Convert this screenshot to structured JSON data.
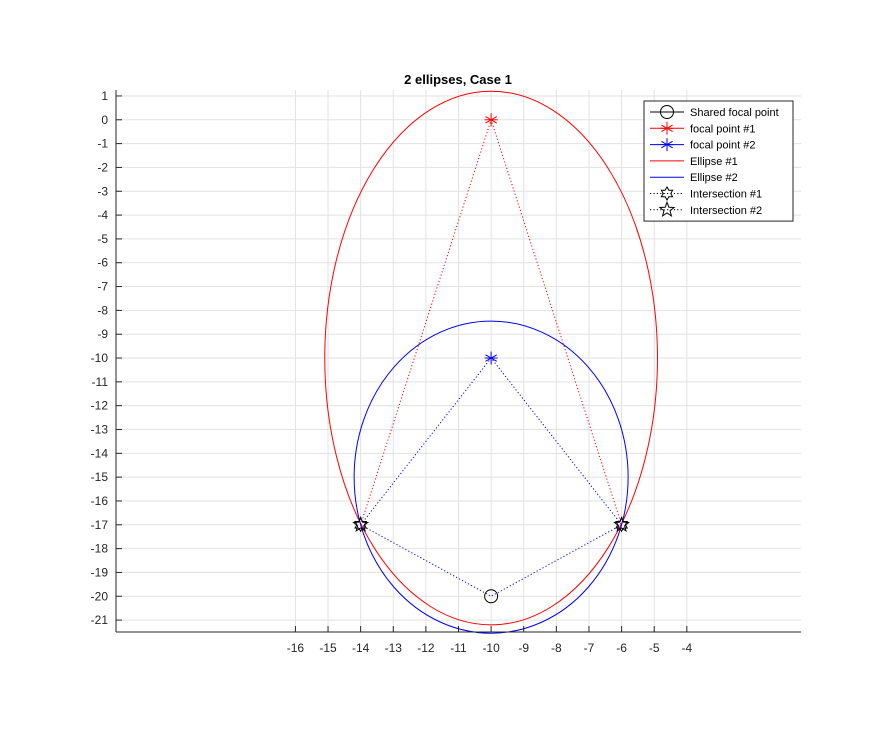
{
  "chart_data": {
    "type": "line",
    "title": "2 ellipses, Case 1",
    "xlabel": "",
    "ylabel": "",
    "xlim": [
      -21.5,
      -0.5
    ],
    "ylim": [
      -21.5,
      1.25
    ],
    "xticks": [
      -16,
      -15,
      -14,
      -13,
      -12,
      -11,
      -10,
      -9,
      -8,
      -7,
      -6,
      -5,
      -4
    ],
    "yticks": [
      1,
      0,
      -1,
      -2,
      -3,
      -4,
      -5,
      -6,
      -7,
      -8,
      -9,
      -10,
      -11,
      -12,
      -13,
      -14,
      -15,
      -16,
      -17,
      -18,
      -19,
      -20,
      -21
    ],
    "grid": true,
    "legend_position": "top-right",
    "series": [
      {
        "name": "Shared focal point",
        "color": "#000000",
        "marker": "circle",
        "line": "solid",
        "points": [
          [
            -10,
            -20
          ]
        ]
      },
      {
        "name": "focal point #1",
        "color": "#ff0000",
        "marker": "asterisk",
        "line": "solid",
        "points": [
          [
            -10,
            0
          ]
        ]
      },
      {
        "name": "focal point #2",
        "color": "#0000ff",
        "marker": "asterisk",
        "line": "solid",
        "points": [
          [
            -10,
            -10
          ]
        ]
      },
      {
        "name": "Ellipse #1",
        "color": "#ff0000",
        "marker": "none",
        "line": "solid",
        "ellipse": {
          "cx": -10,
          "cy": -10,
          "a": 5.1,
          "b": 11.2
        }
      },
      {
        "name": "Ellipse #2",
        "color": "#0000ff",
        "marker": "none",
        "line": "solid",
        "ellipse": {
          "cx": -10,
          "cy": -15,
          "a": 4.2,
          "b": 6.55
        }
      },
      {
        "name": "Intersection #1",
        "color": "#000000",
        "marker": "hexagram",
        "line": "dotted",
        "points": [
          [
            -14,
            -17
          ],
          [
            -6,
            -17
          ]
        ]
      },
      {
        "name": "Intersection #2",
        "color": "#000000",
        "marker": "pentagram",
        "line": "dotted",
        "points": [
          [
            -14,
            -17
          ],
          [
            -6,
            -17
          ]
        ]
      }
    ],
    "connector_lines": [
      {
        "color": "#ff0000",
        "points": [
          [
            -14,
            -17
          ],
          [
            -10,
            0
          ],
          [
            -6,
            -17
          ]
        ]
      },
      {
        "color": "#0000ff",
        "points": [
          [
            -14,
            -17
          ],
          [
            -10,
            -10
          ],
          [
            -6,
            -17
          ]
        ]
      },
      {
        "color": "#0000ff",
        "points": [
          [
            -14,
            -17
          ],
          [
            -10,
            -20
          ],
          [
            -6,
            -17
          ]
        ]
      }
    ]
  }
}
